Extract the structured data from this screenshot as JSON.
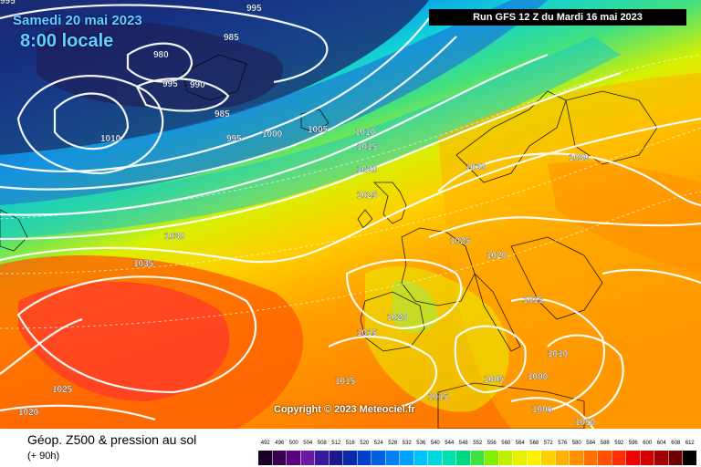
{
  "header": {
    "date": "Samedi 20 mai 2023",
    "time": "8:00 locale",
    "run": "Run GFS 12 Z du Mardi 16 mai 2023"
  },
  "copyright": "Copyright © 2023 Meteociel.fr",
  "footer": {
    "title": "Géop. Z500 & pression au sol",
    "lead": "(+ 90h)"
  },
  "isobar_labels": [
    {
      "text": "995"
    },
    {
      "text": "985"
    },
    {
      "text": "980"
    },
    {
      "text": "995"
    },
    {
      "text": "990"
    },
    {
      "text": "985"
    },
    {
      "text": "995"
    },
    {
      "text": "1000"
    },
    {
      "text": "1005"
    },
    {
      "text": "1010"
    },
    {
      "text": "1010"
    },
    {
      "text": "1015"
    },
    {
      "text": "1020"
    },
    {
      "text": "1025"
    },
    {
      "text": "1030"
    },
    {
      "text": "1030"
    },
    {
      "text": "1035"
    },
    {
      "text": "1030"
    },
    {
      "text": "1025"
    },
    {
      "text": "1020"
    },
    {
      "text": "1015"
    },
    {
      "text": "1020"
    },
    {
      "text": "1015"
    },
    {
      "text": "1015"
    },
    {
      "text": "1010"
    },
    {
      "text": "1005"
    },
    {
      "text": "1000"
    },
    {
      "text": "1015"
    },
    {
      "text": "1000"
    },
    {
      "text": "1010"
    },
    {
      "text": "1025"
    },
    {
      "text": "1020"
    },
    {
      "text": "995"
    }
  ],
  "legend": {
    "values": [
      "492",
      "496",
      "500",
      "504",
      "508",
      "512",
      "516",
      "520",
      "524",
      "528",
      "532",
      "536",
      "540",
      "544",
      "548",
      "552",
      "556",
      "560",
      "564",
      "568",
      "572",
      "576",
      "580",
      "584",
      "588",
      "592",
      "596",
      "600",
      "604",
      "608",
      "612"
    ],
    "colors": [
      "#1a0026",
      "#3a0050",
      "#5a0080",
      "#6a1aa0",
      "#3a1a9a",
      "#1a1a8a",
      "#0a2aaa",
      "#0040c8",
      "#0060e0",
      "#0080f0",
      "#00a0ff",
      "#00c0ff",
      "#00d8e0",
      "#00e0b0",
      "#00d880",
      "#40e040",
      "#80f000",
      "#c0f000",
      "#e8f000",
      "#fff000",
      "#ffd000",
      "#ffb000",
      "#ff9000",
      "#ff7000",
      "#ff5000",
      "#ff3000",
      "#f00000",
      "#d00000",
      "#a00000",
      "#700000",
      "#000000"
    ]
  }
}
